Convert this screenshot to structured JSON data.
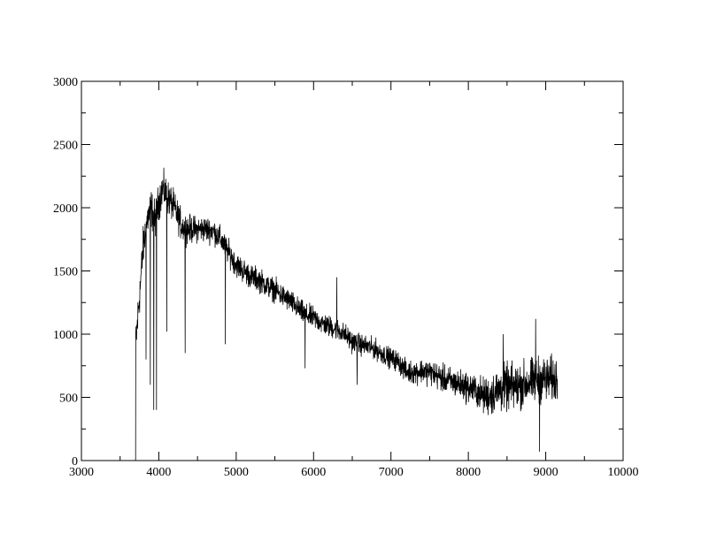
{
  "chart_data": {
    "type": "line",
    "title": "",
    "xlabel": "",
    "ylabel": "",
    "xlim": [
      3000,
      10000
    ],
    "ylim": [
      0,
      3000
    ],
    "x_ticks": [
      3000,
      4000,
      5000,
      6000,
      7000,
      8000,
      9000,
      10000
    ],
    "y_ticks": [
      0,
      500,
      1000,
      1500,
      2000,
      2500,
      3000
    ],
    "x_minor_step": 500,
    "y_minor_step": 250,
    "grid": false,
    "line_color": "#000000",
    "series": [
      {
        "continuum": [
          [
            3700,
            900
          ],
          [
            3750,
            1300
          ],
          [
            3800,
            1700
          ],
          [
            3850,
            1900
          ],
          [
            3900,
            2000
          ],
          [
            3950,
            1900
          ],
          [
            4000,
            2050
          ],
          [
            4050,
            2150
          ],
          [
            4100,
            2100
          ],
          [
            4200,
            2000
          ],
          [
            4300,
            1850
          ],
          [
            4400,
            1830
          ],
          [
            4500,
            1830
          ],
          [
            4600,
            1830
          ],
          [
            4700,
            1820
          ],
          [
            4800,
            1750
          ],
          [
            4900,
            1650
          ],
          [
            5000,
            1550
          ],
          [
            5100,
            1500
          ],
          [
            5200,
            1450
          ],
          [
            5300,
            1430
          ],
          [
            5400,
            1380
          ],
          [
            5500,
            1350
          ],
          [
            5600,
            1300
          ],
          [
            5700,
            1260
          ],
          [
            5800,
            1200
          ],
          [
            5900,
            1150
          ],
          [
            6000,
            1130
          ],
          [
            6100,
            1090
          ],
          [
            6200,
            1060
          ],
          [
            6300,
            1040
          ],
          [
            6400,
            1000
          ],
          [
            6500,
            940
          ],
          [
            6600,
            920
          ],
          [
            6700,
            900
          ],
          [
            6800,
            880
          ],
          [
            6900,
            840
          ],
          [
            7000,
            810
          ],
          [
            7100,
            780
          ],
          [
            7200,
            700
          ],
          [
            7300,
            700
          ],
          [
            7400,
            710
          ],
          [
            7500,
            700
          ],
          [
            7600,
            670
          ],
          [
            7700,
            640
          ],
          [
            7800,
            620
          ],
          [
            7900,
            600
          ],
          [
            8000,
            580
          ],
          [
            8100,
            550
          ],
          [
            8200,
            510
          ],
          [
            8300,
            520
          ],
          [
            8400,
            560
          ],
          [
            8500,
            580
          ],
          [
            8600,
            580
          ],
          [
            8700,
            600
          ],
          [
            8800,
            620
          ],
          [
            8900,
            640
          ],
          [
            9000,
            640
          ],
          [
            9100,
            640
          ],
          [
            9150,
            640
          ]
        ],
        "noise": [
          [
            3700,
            150
          ],
          [
            4500,
            90
          ],
          [
            7000,
            70
          ],
          [
            8100,
            110
          ],
          [
            8400,
            160
          ],
          [
            9150,
            160
          ]
        ],
        "features": [
          [
            3700,
            0
          ],
          [
            3835,
            800
          ],
          [
            3889,
            600
          ],
          [
            3934,
            400
          ],
          [
            3969,
            400
          ],
          [
            4102,
            1020
          ],
          [
            4340,
            850
          ],
          [
            4861,
            920
          ],
          [
            5890,
            730
          ],
          [
            6300,
            1450
          ],
          [
            6563,
            600
          ],
          [
            8450,
            1000
          ],
          [
            8870,
            1120
          ],
          [
            8920,
            70
          ]
        ]
      }
    ]
  }
}
